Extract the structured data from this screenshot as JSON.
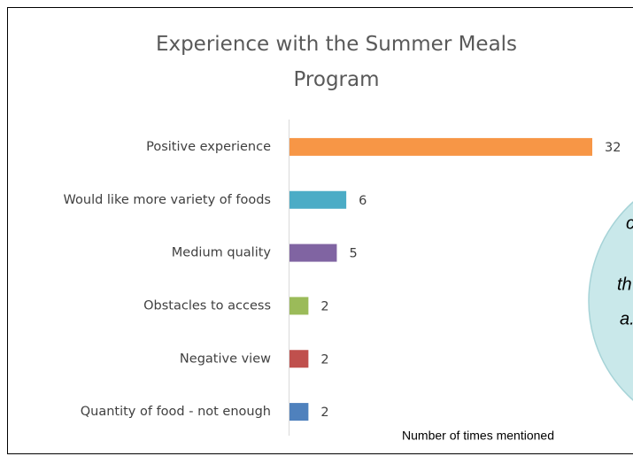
{
  "chart_data": {
    "type": "bar",
    "orientation": "horizontal",
    "title": "Experience with the Summer Meals Program",
    "xlabel": "Number of times mentioned",
    "categories": [
      "Positive experience",
      "Would like more variety of foods",
      "Medium quality",
      "Obstacles to access",
      "Negative view",
      "Quantity of food - not enough"
    ],
    "values": [
      32,
      6,
      5,
      2,
      2,
      2
    ],
    "colors": [
      "#f79646",
      "#4bacc6",
      "#8064a2",
      "#9bbb59",
      "#c0504d",
      "#4f81bd"
    ],
    "xlim": [
      0,
      32
    ],
    "annotations": [
      "c",
      "th",
      "a."
    ]
  }
}
